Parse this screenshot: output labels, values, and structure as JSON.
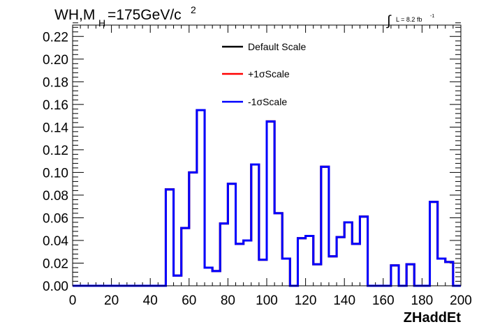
{
  "chart_data": {
    "type": "line",
    "title": "",
    "header": {
      "process": "WH,M",
      "subscript": "H",
      "mass": "=175GeV/c",
      "power": "2"
    },
    "luminosity": {
      "symbol": "∫",
      "text": "L = 8.2 fb",
      "exponent": "-1"
    },
    "xlabel": "ZHaddEt",
    "ylabel": "",
    "xlim": [
      0,
      200
    ],
    "ylim": [
      0,
      0.23
    ],
    "x_ticks": [
      "0",
      "20",
      "40",
      "60",
      "80",
      "100",
      "120",
      "140",
      "160",
      "180",
      "200"
    ],
    "y_ticks": [
      "0.00",
      "0.02",
      "0.04",
      "0.06",
      "0.08",
      "0.10",
      "0.12",
      "0.14",
      "0.16",
      "0.18",
      "0.20",
      "0.22"
    ],
    "legend_position": "top-center",
    "grid": false,
    "bin_edges": [
      0,
      4,
      8,
      12,
      16,
      20,
      24,
      28,
      32,
      36,
      40,
      44,
      48,
      52,
      56,
      60,
      64,
      68,
      72,
      76,
      80,
      84,
      88,
      92,
      96,
      100,
      104,
      108,
      112,
      116,
      120,
      124,
      128,
      132,
      136,
      140,
      144,
      148,
      152,
      156,
      160,
      164,
      168,
      172,
      176,
      180,
      184,
      188,
      192,
      196,
      200
    ],
    "series": [
      {
        "name": "Default Scale",
        "color": "#000000",
        "values": [
          0,
          0,
          0,
          0,
          0,
          0,
          0,
          0,
          0,
          0,
          0,
          0,
          0.085,
          0.009,
          0.051,
          0.1,
          0.155,
          0.016,
          0.013,
          0.055,
          0.09,
          0.037,
          0.04,
          0.107,
          0.023,
          0.145,
          0.064,
          0.024,
          0,
          0.042,
          0.044,
          0.019,
          0.105,
          0.026,
          0.043,
          0.056,
          0.037,
          0.061,
          0,
          0,
          0,
          0.018,
          0,
          0.019,
          0,
          0,
          0.074,
          0.024,
          0.021,
          0
        ]
      },
      {
        "name": "+1σScale",
        "color": "#ff0000",
        "values": [
          0,
          0,
          0,
          0,
          0,
          0,
          0,
          0,
          0,
          0,
          0,
          0,
          0.085,
          0.009,
          0.051,
          0.1,
          0.155,
          0.016,
          0.013,
          0.055,
          0.09,
          0.037,
          0.04,
          0.107,
          0.023,
          0.145,
          0.064,
          0.024,
          0,
          0.042,
          0.044,
          0.019,
          0.105,
          0.026,
          0.043,
          0.056,
          0.037,
          0.061,
          0,
          0,
          0,
          0.018,
          0,
          0.019,
          0,
          0,
          0.074,
          0.024,
          0.021,
          0
        ]
      },
      {
        "name": "-1σScale",
        "color": "#0000ff",
        "values": [
          0,
          0,
          0,
          0,
          0,
          0,
          0,
          0,
          0,
          0,
          0,
          0,
          0.085,
          0.009,
          0.051,
          0.1,
          0.155,
          0.016,
          0.013,
          0.055,
          0.09,
          0.037,
          0.04,
          0.107,
          0.023,
          0.145,
          0.064,
          0.024,
          0,
          0.042,
          0.044,
          0.019,
          0.105,
          0.026,
          0.043,
          0.056,
          0.037,
          0.061,
          0,
          0,
          0,
          0.018,
          0,
          0.019,
          0,
          0,
          0.074,
          0.024,
          0.021,
          0
        ]
      }
    ]
  }
}
